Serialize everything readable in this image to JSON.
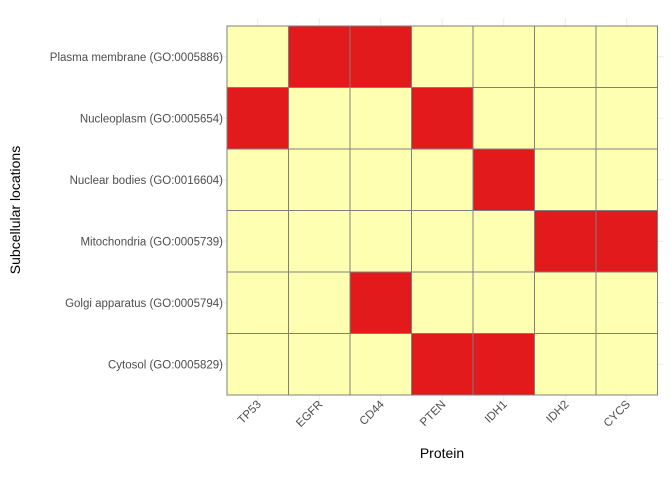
{
  "chart_data": {
    "type": "heatmap",
    "title": "",
    "xlabel": "Protein",
    "ylabel": "Subcellular locations",
    "x": [
      "TP53",
      "EGFR",
      "CD44",
      "PTEN",
      "IDH1",
      "IDH2",
      "CYCS"
    ],
    "y": [
      "Plasma membrane (GO:0005886)",
      "Nucleoplasm (GO:0005654)",
      "Nuclear bodies (GO:0016604)",
      "Mitochondria (GO:0005739)",
      "Golgi apparatus (GO:0005794)",
      "Cytosol (GO:0005829)"
    ],
    "values": [
      [
        0,
        1,
        1,
        0,
        0,
        0,
        0
      ],
      [
        1,
        0,
        0,
        1,
        0,
        0,
        0
      ],
      [
        0,
        0,
        0,
        0,
        1,
        0,
        0
      ],
      [
        0,
        0,
        0,
        0,
        0,
        1,
        1
      ],
      [
        0,
        0,
        1,
        0,
        0,
        0,
        0
      ],
      [
        0,
        0,
        0,
        1,
        1,
        0,
        0
      ]
    ],
    "colors": {
      "present": "#e31a1c",
      "absent": "#ffffb2"
    },
    "legend": "none",
    "grid": true
  }
}
